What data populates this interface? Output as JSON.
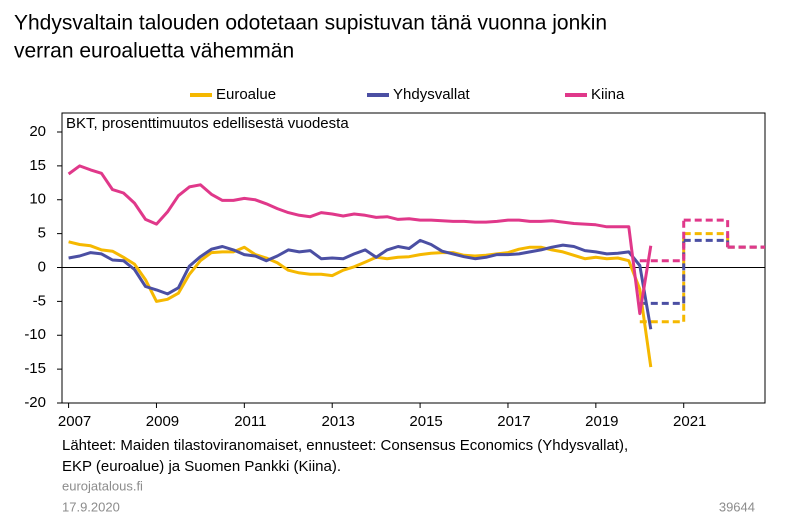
{
  "chart_data": {
    "type": "line",
    "title": [
      "Yhdysvaltain talouden odotetaan supistuvan tänä vuonna jonkin",
      "verran euroaluetta vähemmän"
    ],
    "subtitle": "BKT, prosenttimuutos edellisestä vuodesta",
    "x": [
      2007,
      2007.25,
      2007.5,
      2007.75,
      2008,
      2008.25,
      2008.5,
      2008.75,
      2009,
      2009.25,
      2009.5,
      2009.75,
      2010,
      2010.25,
      2010.5,
      2010.75,
      2011,
      2011.25,
      2011.5,
      2011.75,
      2012,
      2012.25,
      2012.5,
      2012.75,
      2013,
      2013.25,
      2013.5,
      2013.75,
      2014,
      2014.25,
      2014.5,
      2014.75,
      2015,
      2015.25,
      2015.5,
      2015.75,
      2016,
      2016.25,
      2016.5,
      2016.75,
      2017,
      2017.25,
      2017.5,
      2017.75,
      2018,
      2018.25,
      2018.5,
      2018.75,
      2019,
      2019.25,
      2019.5,
      2019.75,
      2020,
      2020.25
    ],
    "series": [
      {
        "name": "Euroalue",
        "color": "#f5b800",
        "values": [
          3.8,
          3.4,
          3.2,
          2.6,
          2.4,
          1.5,
          0.5,
          -1.8,
          -5.0,
          -4.7,
          -3.8,
          -1.0,
          1.0,
          2.2,
          2.3,
          2.3,
          3.0,
          1.9,
          1.4,
          0.7,
          -0.4,
          -0.8,
          -1.0,
          -1.0,
          -1.2,
          -0.4,
          0.1,
          0.8,
          1.5,
          1.3,
          1.5,
          1.6,
          1.9,
          2.1,
          2.2,
          2.2,
          1.8,
          1.7,
          1.8,
          2.0,
          2.2,
          2.7,
          3.0,
          3.0,
          2.6,
          2.3,
          1.8,
          1.3,
          1.5,
          1.3,
          1.4,
          1.0,
          -3.2,
          -14.7
        ],
        "forecast": {
          "x": [
            2020,
            2021,
            2022
          ],
          "values": [
            -8,
            5,
            3
          ]
        }
      },
      {
        "name": "Yhdysvallat",
        "color": "#4b4fa3",
        "values": [
          1.4,
          1.7,
          2.2,
          2.0,
          1.1,
          1.0,
          -0.3,
          -2.8,
          -3.3,
          -3.9,
          -3.0,
          0.2,
          1.6,
          2.7,
          3.1,
          2.6,
          1.9,
          1.7,
          1.0,
          1.7,
          2.6,
          2.3,
          2.5,
          1.3,
          1.4,
          1.3,
          2.0,
          2.6,
          1.5,
          2.6,
          3.1,
          2.8,
          4.0,
          3.4,
          2.4,
          2.0,
          1.6,
          1.3,
          1.5,
          1.9,
          1.9,
          2.0,
          2.3,
          2.6,
          3.0,
          3.3,
          3.1,
          2.5,
          2.3,
          2.0,
          2.1,
          2.3,
          0.3,
          -9.1
        ],
        "forecast": {
          "x": [
            2020,
            2021,
            2022
          ],
          "values": [
            -5.3,
            4,
            3
          ]
        }
      },
      {
        "name": "Kiina",
        "color": "#e0388a",
        "values": [
          13.8,
          15.0,
          14.4,
          13.9,
          11.5,
          11.0,
          9.5,
          7.1,
          6.4,
          8.2,
          10.6,
          11.9,
          12.2,
          10.8,
          9.9,
          9.9,
          10.2,
          10.0,
          9.4,
          8.7,
          8.1,
          7.7,
          7.5,
          8.1,
          7.9,
          7.6,
          7.9,
          7.7,
          7.4,
          7.5,
          7.1,
          7.2,
          7.0,
          7.0,
          6.9,
          6.8,
          6.8,
          6.7,
          6.7,
          6.8,
          7.0,
          7.0,
          6.8,
          6.8,
          6.9,
          6.7,
          6.5,
          6.4,
          6.3,
          6.0,
          6.0,
          6.0,
          -6.8,
          3.2
        ],
        "forecast": {
          "x": [
            2020,
            2021,
            2022
          ],
          "values": [
            1,
            7,
            3
          ]
        }
      }
    ],
    "xlim": [
      2006.85,
      2022.85
    ],
    "xticks": [
      2007,
      2009,
      2011,
      2013,
      2015,
      2017,
      2019,
      2021
    ],
    "ylim": [
      -20,
      20
    ],
    "yticks": [
      -20,
      -15,
      -10,
      -5,
      0,
      5,
      10,
      15,
      20
    ],
    "legend": "top",
    "sources": [
      "Lähteet: Maiden tilastoviranomaiset, ennusteet: Consensus Economics (Yhdysvallat),",
      "EKP (euroalue) ja Suomen Pankki (Kiina)."
    ],
    "site": "eurojatalous.fi",
    "date": "17.9.2020",
    "id": "39644"
  }
}
